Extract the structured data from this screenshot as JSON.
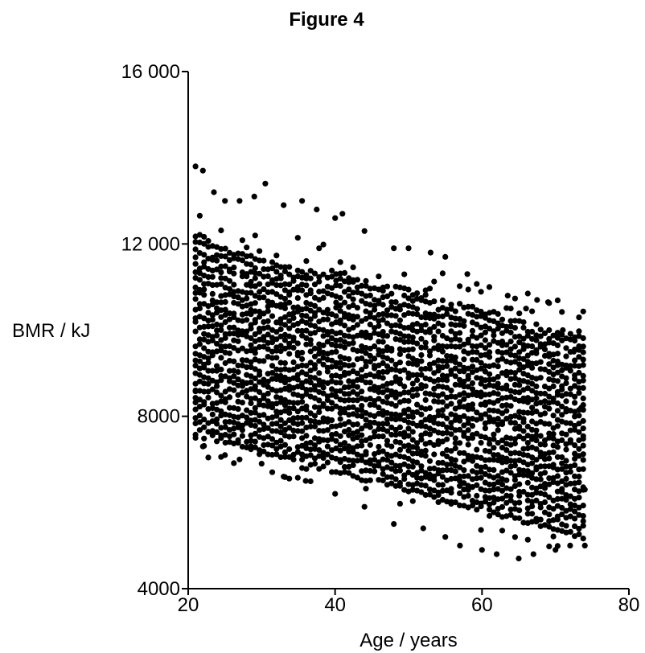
{
  "figure": {
    "title": "Figure 4"
  },
  "chart_data": {
    "type": "scatter",
    "title": "Figure 4",
    "xlabel": "Age / years",
    "ylabel": "BMR / kJ",
    "xlim": [
      20,
      80
    ],
    "ylim": [
      4000,
      16000
    ],
    "x_ticks": [
      20,
      40,
      60,
      80
    ],
    "x_tick_labels": [
      "20",
      "40",
      "60",
      "80"
    ],
    "y_ticks": [
      4000,
      8000,
      12000,
      16000
    ],
    "y_tick_labels": [
      "4000",
      "8000",
      "12 000",
      "16 000"
    ],
    "grid": false,
    "marker_color": "#000000",
    "series": [
      {
        "point_count_approx": 1800,
        "outline_points": [
          {
            "x": 21.0,
            "y": 13800
          },
          {
            "x": 22.0,
            "y": 13700
          },
          {
            "x": 23.5,
            "y": 13200
          },
          {
            "x": 25.0,
            "y": 13000
          },
          {
            "x": 27.0,
            "y": 13000
          },
          {
            "x": 29.0,
            "y": 13100
          },
          {
            "x": 30.5,
            "y": 13400
          },
          {
            "x": 33.0,
            "y": 12900
          },
          {
            "x": 35.5,
            "y": 13000
          },
          {
            "x": 37.5,
            "y": 12800
          },
          {
            "x": 40.0,
            "y": 12600
          },
          {
            "x": 41.0,
            "y": 12700
          },
          {
            "x": 44.0,
            "y": 12300
          },
          {
            "x": 48.0,
            "y": 11900
          },
          {
            "x": 50.0,
            "y": 11900
          },
          {
            "x": 53.0,
            "y": 11800
          },
          {
            "x": 55.0,
            "y": 11700
          },
          {
            "x": 58.0,
            "y": 11300
          },
          {
            "x": 61.0,
            "y": 11000
          },
          {
            "x": 63.5,
            "y": 10800
          },
          {
            "x": 66.0,
            "y": 10500
          },
          {
            "x": 67.5,
            "y": 10700
          },
          {
            "x": 69.0,
            "y": 10650
          },
          {
            "x": 71.0,
            "y": 10000
          },
          {
            "x": 72.5,
            "y": 9500
          },
          {
            "x": 73.5,
            "y": 8200
          },
          {
            "x": 74.0,
            "y": 6300
          },
          {
            "x": 74.0,
            "y": 5000
          },
          {
            "x": 72.0,
            "y": 5000
          },
          {
            "x": 70.0,
            "y": 4900
          },
          {
            "x": 67.0,
            "y": 4800
          },
          {
            "x": 65.0,
            "y": 4700
          },
          {
            "x": 62.0,
            "y": 4800
          },
          {
            "x": 60.0,
            "y": 4900
          },
          {
            "x": 57.0,
            "y": 5000
          },
          {
            "x": 55.0,
            "y": 5200
          },
          {
            "x": 52.0,
            "y": 5400
          },
          {
            "x": 48.0,
            "y": 5500
          },
          {
            "x": 44.0,
            "y": 5900
          },
          {
            "x": 40.0,
            "y": 6200
          },
          {
            "x": 36.0,
            "y": 6500
          },
          {
            "x": 33.0,
            "y": 6600
          },
          {
            "x": 30.0,
            "y": 6900
          },
          {
            "x": 27.0,
            "y": 7000
          },
          {
            "x": 25.0,
            "y": 7100
          },
          {
            "x": 22.0,
            "y": 7300
          },
          {
            "x": 21.0,
            "y": 7500
          },
          {
            "x": 21.0,
            "y": 8600
          }
        ]
      }
    ]
  }
}
